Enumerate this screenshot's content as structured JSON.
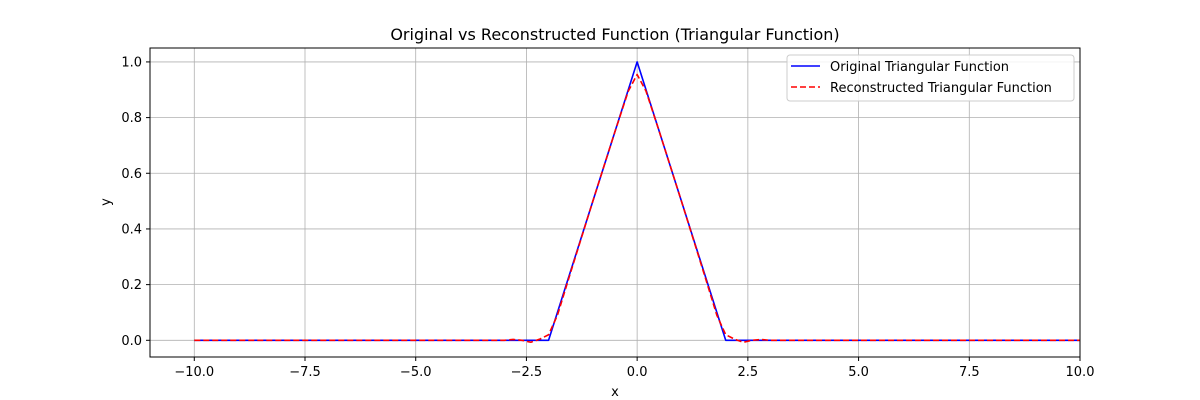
{
  "chart_data": {
    "type": "line",
    "title": "Original vs Reconstructed Function (Triangular Function)",
    "xlabel": "x",
    "ylabel": "y",
    "xlim": [
      -11.0,
      10.0
    ],
    "ylim": [
      -0.06,
      1.05
    ],
    "xticks": [
      -10.0,
      -7.5,
      -5.0,
      -2.5,
      0.0,
      2.5,
      5.0,
      7.5,
      10.0
    ],
    "xtick_labels": [
      "−10.0",
      "−7.5",
      "−5.0",
      "−2.5",
      "0.0",
      "2.5",
      "5.0",
      "7.5",
      "10.0"
    ],
    "yticks": [
      0.0,
      0.2,
      0.4,
      0.6,
      0.8,
      1.0
    ],
    "ytick_labels": [
      "0.0",
      "0.2",
      "0.4",
      "0.6",
      "0.8",
      "1.0"
    ],
    "grid": true,
    "legend_position": "top-right",
    "series": [
      {
        "name": "Original Triangular Function",
        "color": "#0000ff",
        "style": "solid",
        "x": [
          -10.0,
          -2.0,
          -1.0,
          0.0,
          1.0,
          2.0,
          10.0
        ],
        "y": [
          0.0,
          0.0,
          0.5,
          1.0,
          0.5,
          0.0,
          0.0
        ]
      },
      {
        "name": "Reconstructed Triangular Function",
        "color": "#ff0000",
        "style": "dashed",
        "x": [
          -10.0,
          -5.0,
          -3.0,
          -2.8,
          -2.6,
          -2.4,
          -2.2,
          -2.0,
          -1.8,
          -1.5,
          -1.0,
          -0.5,
          -0.2,
          0.0,
          0.2,
          0.5,
          1.0,
          1.5,
          1.8,
          2.0,
          2.2,
          2.4,
          2.6,
          2.8,
          3.0,
          5.0,
          10.0
        ],
        "y": [
          0.0,
          0.0,
          0.0,
          0.003,
          0.0,
          -0.007,
          0.004,
          0.02,
          0.09,
          0.245,
          0.5,
          0.75,
          0.895,
          0.955,
          0.895,
          0.75,
          0.5,
          0.245,
          0.09,
          0.02,
          0.004,
          -0.007,
          0.0,
          0.003,
          0.0,
          0.0,
          0.0
        ]
      }
    ]
  }
}
